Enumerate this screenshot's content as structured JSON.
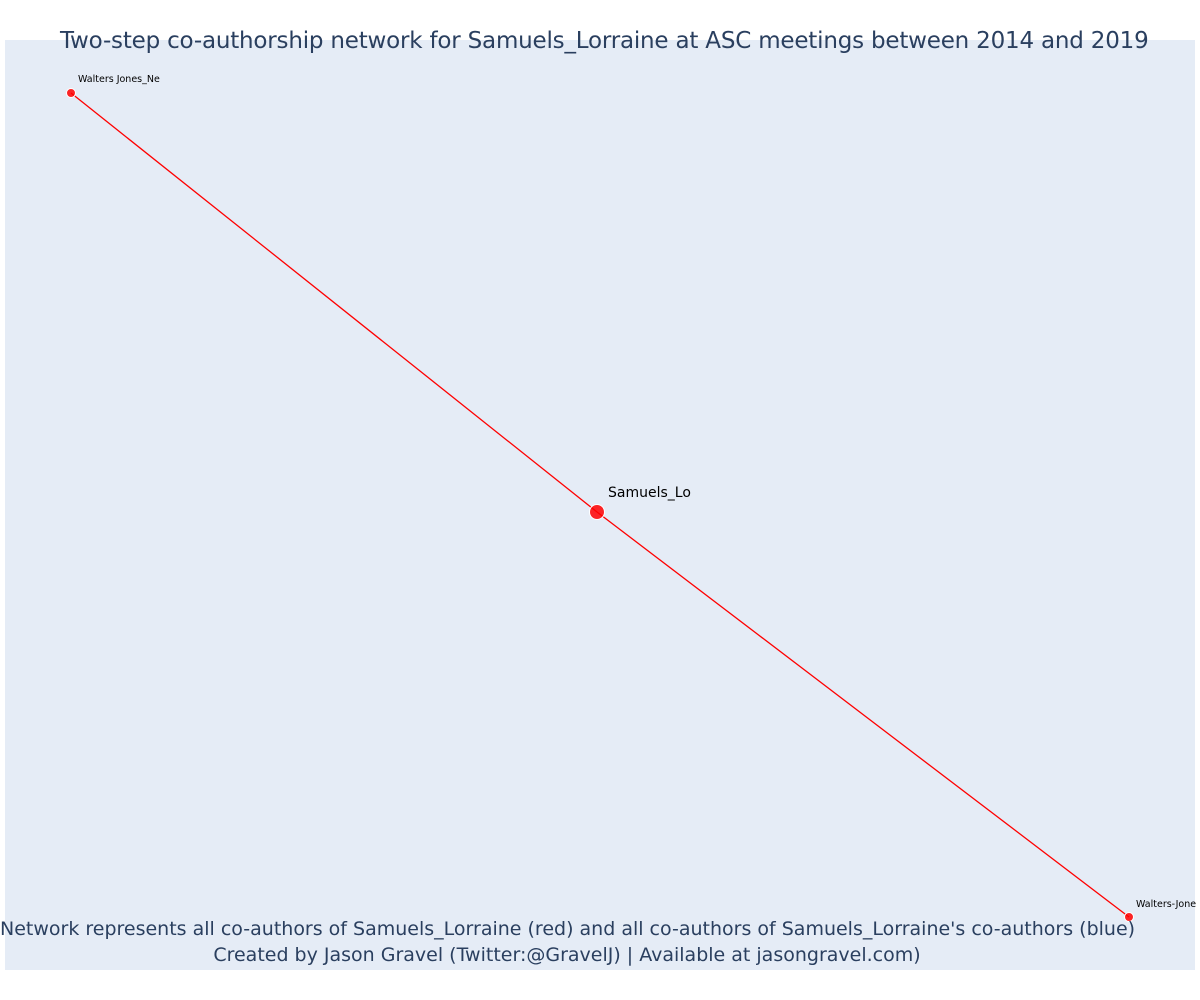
{
  "title": "Two-step co-authorship network for Samuels_Lorraine at ASC meetings between 2014 and 2019",
  "footer": {
    "line1": "Network represents all co-authors of Samuels_Lorraine (red) and all co-authors of Samuels_Lorraine's co-authors (blue)",
    "line2": "Created by Jason Gravel (Twitter:@GravelJ) | Available at jasongravel.com)"
  },
  "colors": {
    "background": "#e5ecf6",
    "text": "#2a3f5f",
    "first_degree": "#ff0000",
    "node_outline": "#ffffff"
  },
  "chart_data": {
    "type": "network",
    "nodes": [
      {
        "id": "center",
        "label": "Samuels_Lo",
        "role": "ego",
        "color": "#ff0000"
      },
      {
        "id": "nw",
        "label": "Walters Jones_Ne",
        "role": "co-author",
        "color": "#ff0000"
      },
      {
        "id": "se",
        "label": "Walters-Jone",
        "role": "co-author",
        "color": "#ff0000"
      }
    ],
    "edges": [
      {
        "source": "nw",
        "target": "center",
        "color": "#ff0000"
      },
      {
        "source": "center",
        "target": "se",
        "color": "#ff0000"
      }
    ],
    "grid": false,
    "legend": "none"
  }
}
